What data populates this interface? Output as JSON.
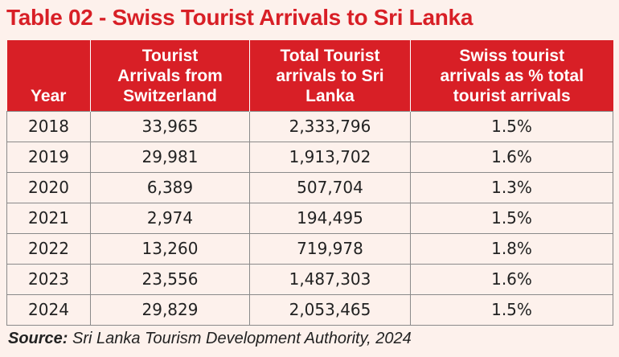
{
  "title": "Table 02 - Swiss Tourist Arrivals to Sri Lanka",
  "columns": [
    {
      "lines": [
        "Year"
      ]
    },
    {
      "lines": [
        "Tourist",
        "Arrivals from",
        "Switzerland"
      ]
    },
    {
      "lines": [
        "Total Tourist",
        "arrivals to Sri",
        "Lanka"
      ]
    },
    {
      "lines": [
        "Swiss tourist",
        "arrivals as % total",
        "tourist arrivals"
      ]
    }
  ],
  "rows": [
    [
      "2018",
      "33,965",
      "2,333,796",
      "1.5%"
    ],
    [
      "2019",
      "29,981",
      "1,913,702",
      "1.6%"
    ],
    [
      "2020",
      "6,389",
      "507,704",
      "1.3%"
    ],
    [
      "2021",
      "2,974",
      "194,495",
      "1.5%"
    ],
    [
      "2022",
      "13,260",
      "719,978",
      "1.8%"
    ],
    [
      "2023",
      "23,556",
      "1,487,303",
      "1.6%"
    ],
    [
      "2024",
      "29,829",
      "2,053,465",
      "1.5%"
    ]
  ],
  "source": {
    "label": "Source:",
    "text": " Sri Lanka Tourism Development Authority, 2024"
  },
  "colors": {
    "accent": "#d81f26",
    "background": "#fdf1ec"
  }
}
